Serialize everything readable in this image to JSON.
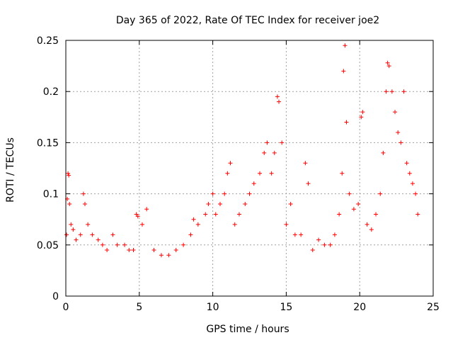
{
  "chart_data": {
    "type": "scatter",
    "title": "Day 365 of 2022, Rate Of TEC Index for receiver joe2",
    "xlabel": "GPS time / hours",
    "ylabel": "ROTI / TECUs",
    "xlim": [
      0,
      25
    ],
    "ylim": [
      0,
      0.25
    ],
    "x_ticks": [
      "0",
      "5",
      "10",
      "15",
      "20",
      "25"
    ],
    "y_ticks": [
      "0",
      "0.05",
      "0.1",
      "0.15",
      "0.2",
      "0.25"
    ],
    "grid": true,
    "legend": "none",
    "marker": "+",
    "series": [
      {
        "color": "#ff0000",
        "points": [
          [
            0.05,
            0.06
          ],
          [
            0.1,
            0.095
          ],
          [
            0.15,
            0.12
          ],
          [
            0.2,
            0.118
          ],
          [
            0.25,
            0.09
          ],
          [
            0.35,
            0.07
          ],
          [
            0.5,
            0.065
          ],
          [
            0.7,
            0.055
          ],
          [
            1.0,
            0.06
          ],
          [
            1.2,
            0.1
          ],
          [
            1.3,
            0.09
          ],
          [
            1.5,
            0.07
          ],
          [
            1.8,
            0.06
          ],
          [
            2.2,
            0.055
          ],
          [
            2.5,
            0.05
          ],
          [
            2.8,
            0.045
          ],
          [
            3.2,
            0.06
          ],
          [
            3.5,
            0.05
          ],
          [
            4.0,
            0.05
          ],
          [
            4.3,
            0.045
          ],
          [
            4.6,
            0.045
          ],
          [
            4.8,
            0.08
          ],
          [
            4.9,
            0.078
          ],
          [
            5.2,
            0.07
          ],
          [
            5.5,
            0.085
          ],
          [
            6.0,
            0.045
          ],
          [
            6.5,
            0.04
          ],
          [
            7.0,
            0.04
          ],
          [
            7.5,
            0.045
          ],
          [
            8.0,
            0.05
          ],
          [
            8.5,
            0.06
          ],
          [
            8.7,
            0.075
          ],
          [
            9.0,
            0.07
          ],
          [
            9.5,
            0.08
          ],
          [
            9.7,
            0.09
          ],
          [
            10.0,
            0.1
          ],
          [
            10.2,
            0.08
          ],
          [
            10.5,
            0.09
          ],
          [
            10.8,
            0.1
          ],
          [
            11.0,
            0.12
          ],
          [
            11.2,
            0.13
          ],
          [
            11.5,
            0.07
          ],
          [
            11.8,
            0.08
          ],
          [
            12.2,
            0.09
          ],
          [
            12.5,
            0.1
          ],
          [
            12.8,
            0.11
          ],
          [
            13.2,
            0.12
          ],
          [
            13.5,
            0.14
          ],
          [
            13.7,
            0.15
          ],
          [
            14.0,
            0.12
          ],
          [
            14.2,
            0.14
          ],
          [
            14.4,
            0.195
          ],
          [
            14.5,
            0.19
          ],
          [
            14.7,
            0.15
          ],
          [
            15.0,
            0.07
          ],
          [
            15.3,
            0.09
          ],
          [
            15.6,
            0.06
          ],
          [
            16.0,
            0.06
          ],
          [
            16.3,
            0.13
          ],
          [
            16.5,
            0.11
          ],
          [
            16.8,
            0.045
          ],
          [
            17.2,
            0.055
          ],
          [
            17.6,
            0.05
          ],
          [
            18.0,
            0.05
          ],
          [
            18.3,
            0.06
          ],
          [
            18.6,
            0.08
          ],
          [
            18.8,
            0.12
          ],
          [
            18.9,
            0.22
          ],
          [
            19.0,
            0.245
          ],
          [
            19.1,
            0.17
          ],
          [
            19.3,
            0.1
          ],
          [
            19.6,
            0.085
          ],
          [
            19.9,
            0.09
          ],
          [
            20.1,
            0.175
          ],
          [
            20.2,
            0.18
          ],
          [
            20.5,
            0.07
          ],
          [
            20.8,
            0.065
          ],
          [
            21.1,
            0.08
          ],
          [
            21.4,
            0.1
          ],
          [
            21.6,
            0.14
          ],
          [
            21.8,
            0.2
          ],
          [
            21.9,
            0.228
          ],
          [
            22.0,
            0.225
          ],
          [
            22.2,
            0.2
          ],
          [
            22.4,
            0.18
          ],
          [
            22.6,
            0.16
          ],
          [
            22.8,
            0.15
          ],
          [
            23.0,
            0.2
          ],
          [
            23.2,
            0.13
          ],
          [
            23.4,
            0.12
          ],
          [
            23.6,
            0.11
          ],
          [
            23.8,
            0.1
          ],
          [
            23.95,
            0.08
          ]
        ]
      }
    ]
  }
}
